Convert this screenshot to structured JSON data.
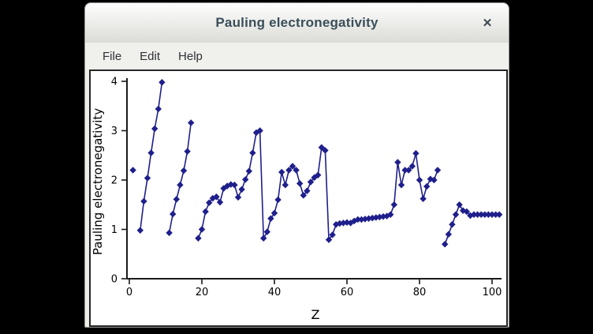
{
  "window": {
    "title": "Pauling electronegativity",
    "close_glyph": "✕"
  },
  "menu": {
    "items": [
      "File",
      "Edit",
      "Help"
    ]
  },
  "chart_data": {
    "type": "line",
    "title": "",
    "xlabel": "Z",
    "ylabel": "Pauling electronegativity",
    "xlim": [
      0,
      103
    ],
    "ylim": [
      0,
      4
    ],
    "xticks": [
      0,
      20,
      40,
      60,
      80,
      100
    ],
    "yticks": [
      0,
      1,
      2,
      3,
      4
    ],
    "grid": false,
    "legend": "none",
    "marker": "diamond",
    "line_color": "#1f1f8c",
    "axis_color": "#1a1a1a",
    "background": "#ffffff",
    "note": "points are [Z, electronegativity]; line breaks occur where Z is non-consecutive (noble gases without values)",
    "series": [
      {
        "name": "Pauling electronegativity",
        "points": [
          [
            1,
            2.2
          ],
          [
            3,
            0.98
          ],
          [
            4,
            1.57
          ],
          [
            5,
            2.04
          ],
          [
            6,
            2.55
          ],
          [
            7,
            3.04
          ],
          [
            8,
            3.44
          ],
          [
            9,
            3.98
          ],
          [
            11,
            0.93
          ],
          [
            12,
            1.31
          ],
          [
            13,
            1.61
          ],
          [
            14,
            1.9
          ],
          [
            15,
            2.19
          ],
          [
            16,
            2.58
          ],
          [
            17,
            3.16
          ],
          [
            19,
            0.82
          ],
          [
            20,
            1.0
          ],
          [
            21,
            1.36
          ],
          [
            22,
            1.54
          ],
          [
            23,
            1.63
          ],
          [
            24,
            1.66
          ],
          [
            25,
            1.55
          ],
          [
            26,
            1.83
          ],
          [
            27,
            1.88
          ],
          [
            28,
            1.91
          ],
          [
            29,
            1.9
          ],
          [
            30,
            1.65
          ],
          [
            31,
            1.81
          ],
          [
            32,
            2.01
          ],
          [
            33,
            2.18
          ],
          [
            34,
            2.55
          ],
          [
            35,
            2.96
          ],
          [
            36,
            3.0
          ],
          [
            37,
            0.82
          ],
          [
            38,
            0.95
          ],
          [
            39,
            1.22
          ],
          [
            40,
            1.33
          ],
          [
            41,
            1.6
          ],
          [
            42,
            2.16
          ],
          [
            43,
            1.9
          ],
          [
            44,
            2.2
          ],
          [
            45,
            2.28
          ],
          [
            46,
            2.2
          ],
          [
            47,
            1.93
          ],
          [
            48,
            1.69
          ],
          [
            49,
            1.78
          ],
          [
            50,
            1.96
          ],
          [
            51,
            2.05
          ],
          [
            52,
            2.1
          ],
          [
            53,
            2.66
          ],
          [
            54,
            2.6
          ],
          [
            55,
            0.79
          ],
          [
            56,
            0.89
          ],
          [
            57,
            1.1
          ],
          [
            58,
            1.12
          ],
          [
            59,
            1.13
          ],
          [
            60,
            1.14
          ],
          [
            61,
            1.13
          ],
          [
            62,
            1.17
          ],
          [
            63,
            1.2
          ],
          [
            64,
            1.2
          ],
          [
            65,
            1.21
          ],
          [
            66,
            1.22
          ],
          [
            67,
            1.23
          ],
          [
            68,
            1.24
          ],
          [
            69,
            1.25
          ],
          [
            70,
            1.26
          ],
          [
            71,
            1.27
          ],
          [
            72,
            1.3
          ],
          [
            73,
            1.5
          ],
          [
            74,
            2.36
          ],
          [
            75,
            1.9
          ],
          [
            76,
            2.2
          ],
          [
            77,
            2.2
          ],
          [
            78,
            2.28
          ],
          [
            79,
            2.54
          ],
          [
            80,
            2.0
          ],
          [
            81,
            1.62
          ],
          [
            82,
            1.87
          ],
          [
            83,
            2.02
          ],
          [
            84,
            2.0
          ],
          [
            85,
            2.2
          ],
          [
            87,
            0.7
          ],
          [
            88,
            0.9
          ],
          [
            89,
            1.1
          ],
          [
            90,
            1.3
          ],
          [
            91,
            1.5
          ],
          [
            92,
            1.38
          ],
          [
            93,
            1.36
          ],
          [
            94,
            1.28
          ],
          [
            95,
            1.3
          ],
          [
            96,
            1.3
          ],
          [
            97,
            1.3
          ],
          [
            98,
            1.3
          ],
          [
            99,
            1.3
          ],
          [
            100,
            1.3
          ],
          [
            101,
            1.3
          ],
          [
            102,
            1.3
          ]
        ]
      }
    ]
  }
}
